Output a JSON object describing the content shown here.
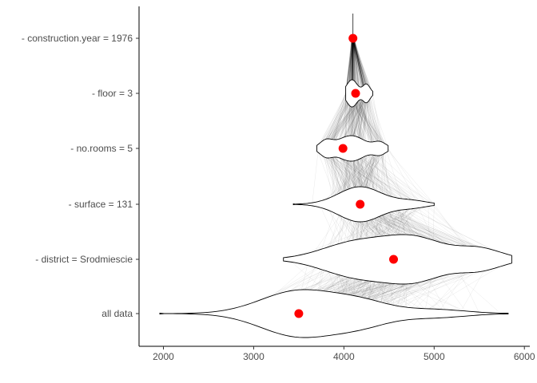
{
  "chart_data": {
    "type": "violin",
    "title": "",
    "xlabel": "",
    "ylabel": "",
    "xlim": [
      1730,
      6060
    ],
    "x_ticks": [
      "2000",
      "3000",
      "4000",
      "5000",
      "6000"
    ],
    "categories": [
      "- construction.year = 1976",
      "- floor = 3",
      "- no.rooms = 5",
      "- surface = 131",
      "- district = Srodmiescie",
      "all data"
    ],
    "means": [
      4100,
      4130,
      3990,
      4180,
      4550,
      3500
    ],
    "distributions": [
      {
        "label": "- construction.year = 1976",
        "min": 4085,
        "max": 4115,
        "peaks": [
          [
            4100,
            12,
            0.1
          ]
        ]
      },
      {
        "label": "- floor = 3",
        "min": 4020,
        "max": 4320,
        "peaks": [
          [
            4090,
            60,
            0.9
          ],
          [
            4250,
            40,
            0.6
          ]
        ]
      },
      {
        "label": "- no.rooms = 5",
        "min": 3700,
        "max": 4490,
        "peaks": [
          [
            3800,
            70,
            0.55
          ],
          [
            4080,
            150,
            1.0
          ],
          [
            4400,
            70,
            0.45
          ]
        ]
      },
      {
        "label": "- surface = 131",
        "min": 3440,
        "max": 5000,
        "peaks": [
          [
            4180,
            240,
            1.0
          ],
          [
            4750,
            170,
            0.2
          ]
        ]
      },
      {
        "label": "- district = Srodmiescie",
        "min": 3330,
        "max": 5860,
        "peaks": [
          [
            4150,
            380,
            0.9
          ],
          [
            4800,
            320,
            1.0
          ],
          [
            5500,
            250,
            0.55
          ]
        ]
      },
      {
        "label": "all data",
        "min": 1960,
        "max": 5820,
        "peaks": [
          [
            3500,
            420,
            1.0
          ],
          [
            4200,
            320,
            0.45
          ],
          [
            5000,
            350,
            0.18
          ]
        ]
      }
    ],
    "colors": {
      "mean": "#ff0000",
      "violin_fill": "#ffffff",
      "violin_stroke": "#000000",
      "trail": "#000000"
    }
  }
}
